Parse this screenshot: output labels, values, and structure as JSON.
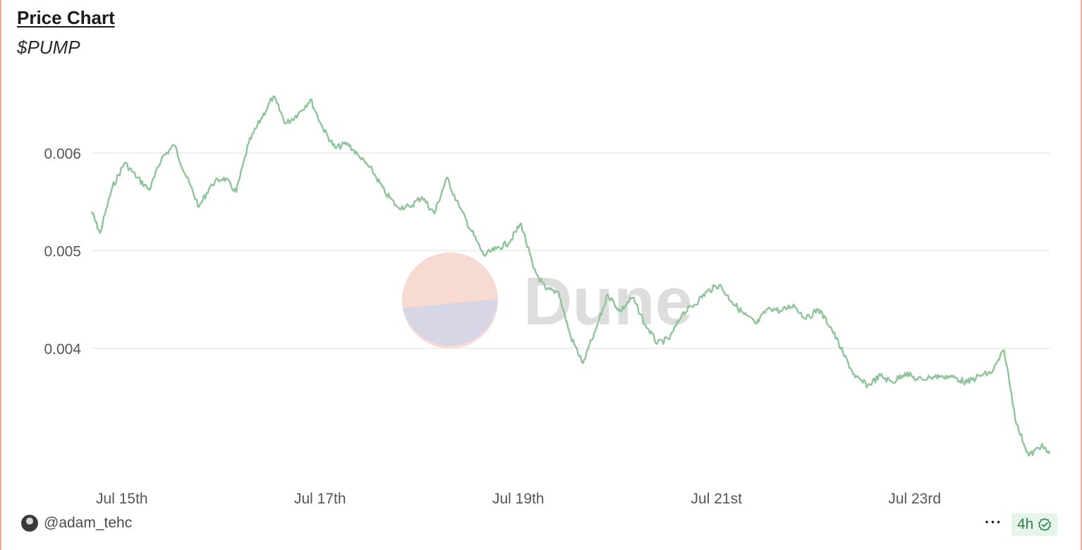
{
  "header": {
    "title": "Price Chart",
    "subtitle": "$PUMP"
  },
  "footer": {
    "author": "@adam_tehc",
    "more_label": "···",
    "age": "4h"
  },
  "watermark": {
    "text": "Dune"
  },
  "colors": {
    "line": "#8fc49a",
    "grid": "#e8e8e8",
    "tick_text": "#555555",
    "accent_border": "#f0a898",
    "badge_bg": "#e6f5ea",
    "badge_text": "#2e7d4f"
  },
  "chart_data": {
    "type": "line",
    "title": "Price Chart",
    "subtitle": "$PUMP",
    "xlabel": "",
    "ylabel": "",
    "x_ticks": [
      "Jul 15th",
      "Jul 17th",
      "Jul 19th",
      "Jul 21st",
      "Jul 23rd"
    ],
    "y_ticks": [
      "0.004",
      "0.005",
      "0.006"
    ],
    "y_tick_values": [
      0.004,
      0.005,
      0.006
    ],
    "ylim": [
      0.00285,
      0.00675
    ],
    "xlim": [
      "2025-07-14 16:00",
      "2025-07-24 08:00"
    ],
    "grid": true,
    "legend": "none",
    "series": [
      {
        "x": [
          "2025-07-14 16:00",
          "2025-07-14 18:00",
          "2025-07-14 21:00",
          "2025-07-15 00:00",
          "2025-07-15 03:00",
          "2025-07-15 06:00",
          "2025-07-15 09:00",
          "2025-07-15 12:00",
          "2025-07-15 15:00",
          "2025-07-15 18:00",
          "2025-07-15 21:00",
          "2025-07-16 00:00",
          "2025-07-16 03:00",
          "2025-07-16 06:00",
          "2025-07-16 09:00",
          "2025-07-16 12:00",
          "2025-07-16 15:00",
          "2025-07-16 18:00",
          "2025-07-16 21:00",
          "2025-07-17 00:00",
          "2025-07-17 03:00",
          "2025-07-17 06:00",
          "2025-07-17 09:00",
          "2025-07-17 12:00",
          "2025-07-17 15:00",
          "2025-07-17 18:00",
          "2025-07-17 21:00",
          "2025-07-18 00:00",
          "2025-07-18 03:00",
          "2025-07-18 06:00",
          "2025-07-18 09:00",
          "2025-07-18 12:00",
          "2025-07-18 15:00",
          "2025-07-18 18:00",
          "2025-07-18 21:00",
          "2025-07-19 00:00",
          "2025-07-19 03:00",
          "2025-07-19 06:00",
          "2025-07-19 09:00",
          "2025-07-19 12:00",
          "2025-07-19 15:00",
          "2025-07-19 18:00",
          "2025-07-19 21:00",
          "2025-07-20 00:00",
          "2025-07-20 03:00",
          "2025-07-20 06:00",
          "2025-07-20 09:00",
          "2025-07-20 12:00",
          "2025-07-20 15:00",
          "2025-07-20 18:00",
          "2025-07-20 21:00",
          "2025-07-21 00:00",
          "2025-07-21 03:00",
          "2025-07-21 06:00",
          "2025-07-21 09:00",
          "2025-07-21 12:00",
          "2025-07-21 15:00",
          "2025-07-21 18:00",
          "2025-07-21 21:00",
          "2025-07-22 00:00",
          "2025-07-22 03:00",
          "2025-07-22 06:00",
          "2025-07-22 09:00",
          "2025-07-22 12:00",
          "2025-07-22 15:00",
          "2025-07-22 18:00",
          "2025-07-22 21:00",
          "2025-07-23 00:00",
          "2025-07-23 03:00",
          "2025-07-23 06:00",
          "2025-07-23 09:00",
          "2025-07-23 12:00",
          "2025-07-23 15:00",
          "2025-07-23 18:00",
          "2025-07-23 21:00",
          "2025-07-24 00:00",
          "2025-07-24 03:00",
          "2025-07-24 06:00",
          "2025-07-24 08:00"
        ],
        "values": [
          0.0054,
          0.00518,
          0.00565,
          0.0059,
          0.00575,
          0.00562,
          0.00595,
          0.00608,
          0.00575,
          0.00545,
          0.00568,
          0.00575,
          0.0056,
          0.0061,
          0.00635,
          0.00658,
          0.0063,
          0.0064,
          0.00655,
          0.00625,
          0.00605,
          0.0061,
          0.00595,
          0.00582,
          0.0056,
          0.00545,
          0.00545,
          0.00555,
          0.00538,
          0.00575,
          0.00545,
          0.0052,
          0.00495,
          0.00502,
          0.00508,
          0.00528,
          0.00482,
          0.0046,
          0.00458,
          0.00412,
          0.00385,
          0.00418,
          0.00455,
          0.00438,
          0.00452,
          0.00425,
          0.00405,
          0.0041,
          0.00435,
          0.00445,
          0.00458,
          0.00465,
          0.00448,
          0.00435,
          0.00425,
          0.00442,
          0.00438,
          0.00445,
          0.0043,
          0.0044,
          0.00422,
          0.00395,
          0.0037,
          0.00362,
          0.00372,
          0.00365,
          0.00375,
          0.00368,
          0.0037,
          0.00372,
          0.0037,
          0.00365,
          0.00372,
          0.00375,
          0.00398,
          0.00322,
          0.0029,
          0.003,
          0.00292
        ]
      }
    ]
  }
}
